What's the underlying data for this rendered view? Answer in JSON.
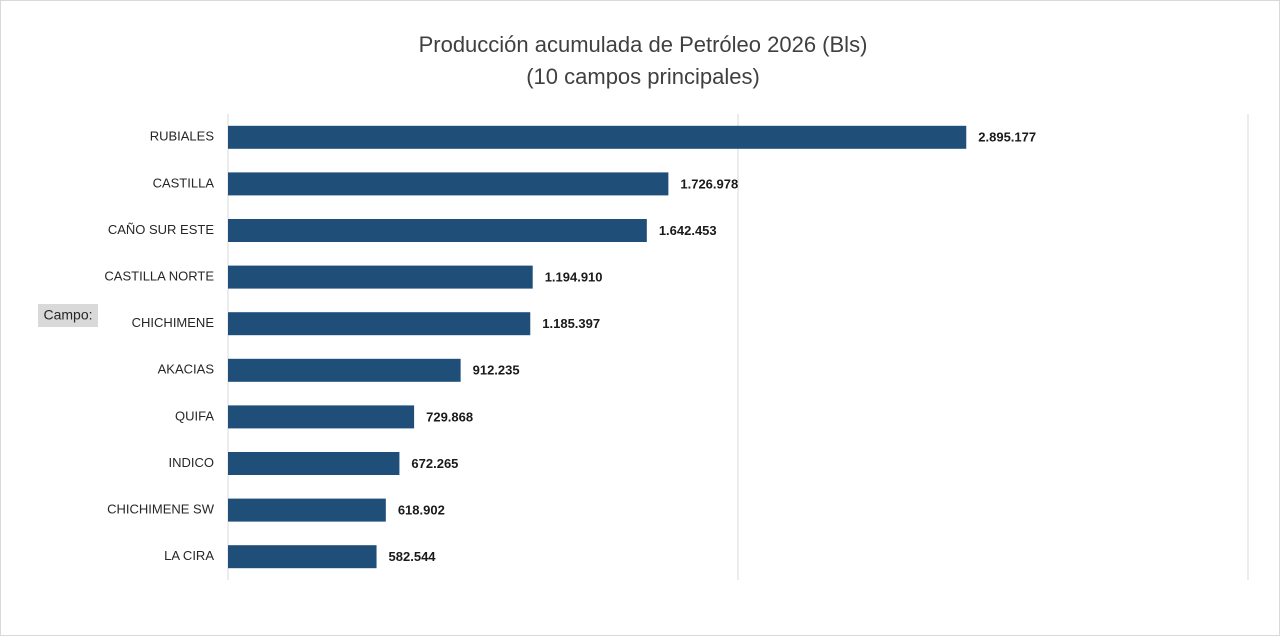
{
  "chart_data": {
    "type": "barh",
    "title": "Producción acumulada de Petróleo 2026 (Bls)",
    "subtitle": "(10 campos principales)",
    "field_button": "Campo:",
    "categories": [
      "RUBIALES",
      "CASTILLA",
      "CAÑO SUR ESTE",
      "CASTILLA NORTE",
      "CHICHIMENE",
      "AKACIAS",
      "QUIFA",
      "INDICO",
      "CHICHIMENE SW",
      "LA CIRA"
    ],
    "values": [
      2895177,
      1726978,
      1642453,
      1194910,
      1185397,
      912235,
      729868,
      672265,
      618902,
      582544
    ],
    "value_labels": [
      "2.895.177",
      "1.726.978",
      "1.642.453",
      "1.194.910",
      "1.185.397",
      "912.235",
      "729.868",
      "672.265",
      "618.902",
      "582.544"
    ],
    "color": "#1f4e79",
    "xlim": [
      0,
      4000000
    ],
    "xticks": [
      0,
      2000000,
      4000000
    ],
    "grid": true
  }
}
